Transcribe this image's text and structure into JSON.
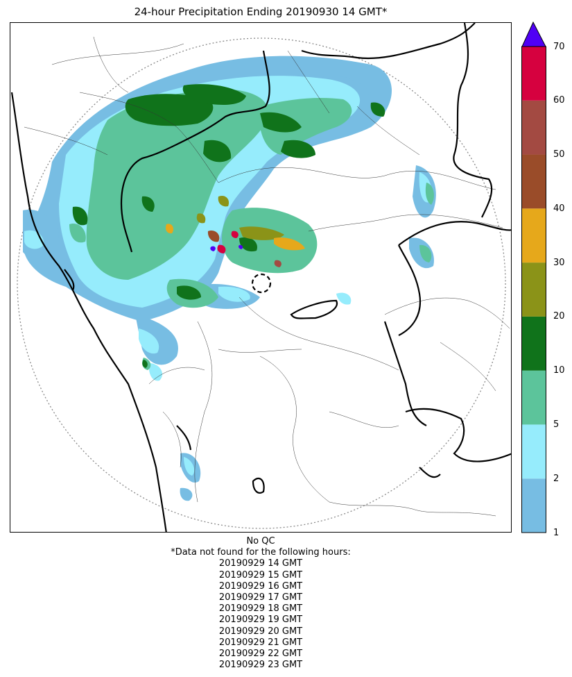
{
  "title": "24-hour Precipitation Ending 20190930 14 GMT*",
  "colorbar": {
    "tick_labels": [
      "1",
      "2",
      "5",
      "10",
      "20",
      "30",
      "40",
      "50",
      "60",
      "70"
    ],
    "bins": [
      {
        "from": 1,
        "to": 2,
        "color": "#77bde3"
      },
      {
        "from": 2,
        "to": 5,
        "color": "#96ecfc"
      },
      {
        "from": 5,
        "to": 10,
        "color": "#5cc49b"
      },
      {
        "from": 10,
        "to": 20,
        "color": "#10731b"
      },
      {
        "from": 20,
        "to": 30,
        "color": "#8b9318"
      },
      {
        "from": 30,
        "to": 40,
        "color": "#e6a81b"
      },
      {
        "from": 40,
        "to": 50,
        "color": "#9a4c29"
      },
      {
        "from": 50,
        "to": 60,
        "color": "#a34a42"
      },
      {
        "from": 60,
        "to": 70,
        "color": "#d6013f"
      }
    ],
    "over_color": "#5000f5"
  },
  "footnote": {
    "qc": "No QC",
    "note": "*Data not found for the following hours:",
    "missing_hours": [
      "20190929 14 GMT",
      "20190929 15 GMT",
      "20190929 16 GMT",
      "20190929 17 GMT",
      "20190929 18 GMT",
      "20190929 19 GMT",
      "20190929 20 GMT",
      "20190929 21 GMT",
      "20190929 22 GMT",
      "20190929 23 GMT"
    ]
  }
}
